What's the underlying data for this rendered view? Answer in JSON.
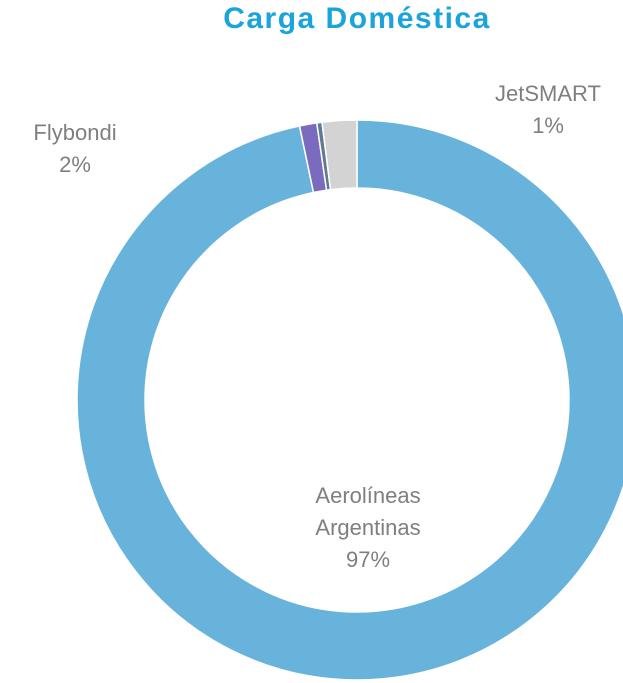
{
  "chart_data": {
    "type": "donut",
    "title": "Carga Doméstica",
    "categories": [
      "Aerolíneas Argentinas",
      "JetSMART",
      null,
      "Flybondi"
    ],
    "values": [
      97,
      1,
      0.3,
      2
    ],
    "value_labels": [
      "97%",
      "1%",
      null,
      "2%"
    ],
    "colors": [
      "#67b3db",
      "#7b6bbf",
      "#5f7a92",
      "#d3d3d3"
    ]
  }
}
